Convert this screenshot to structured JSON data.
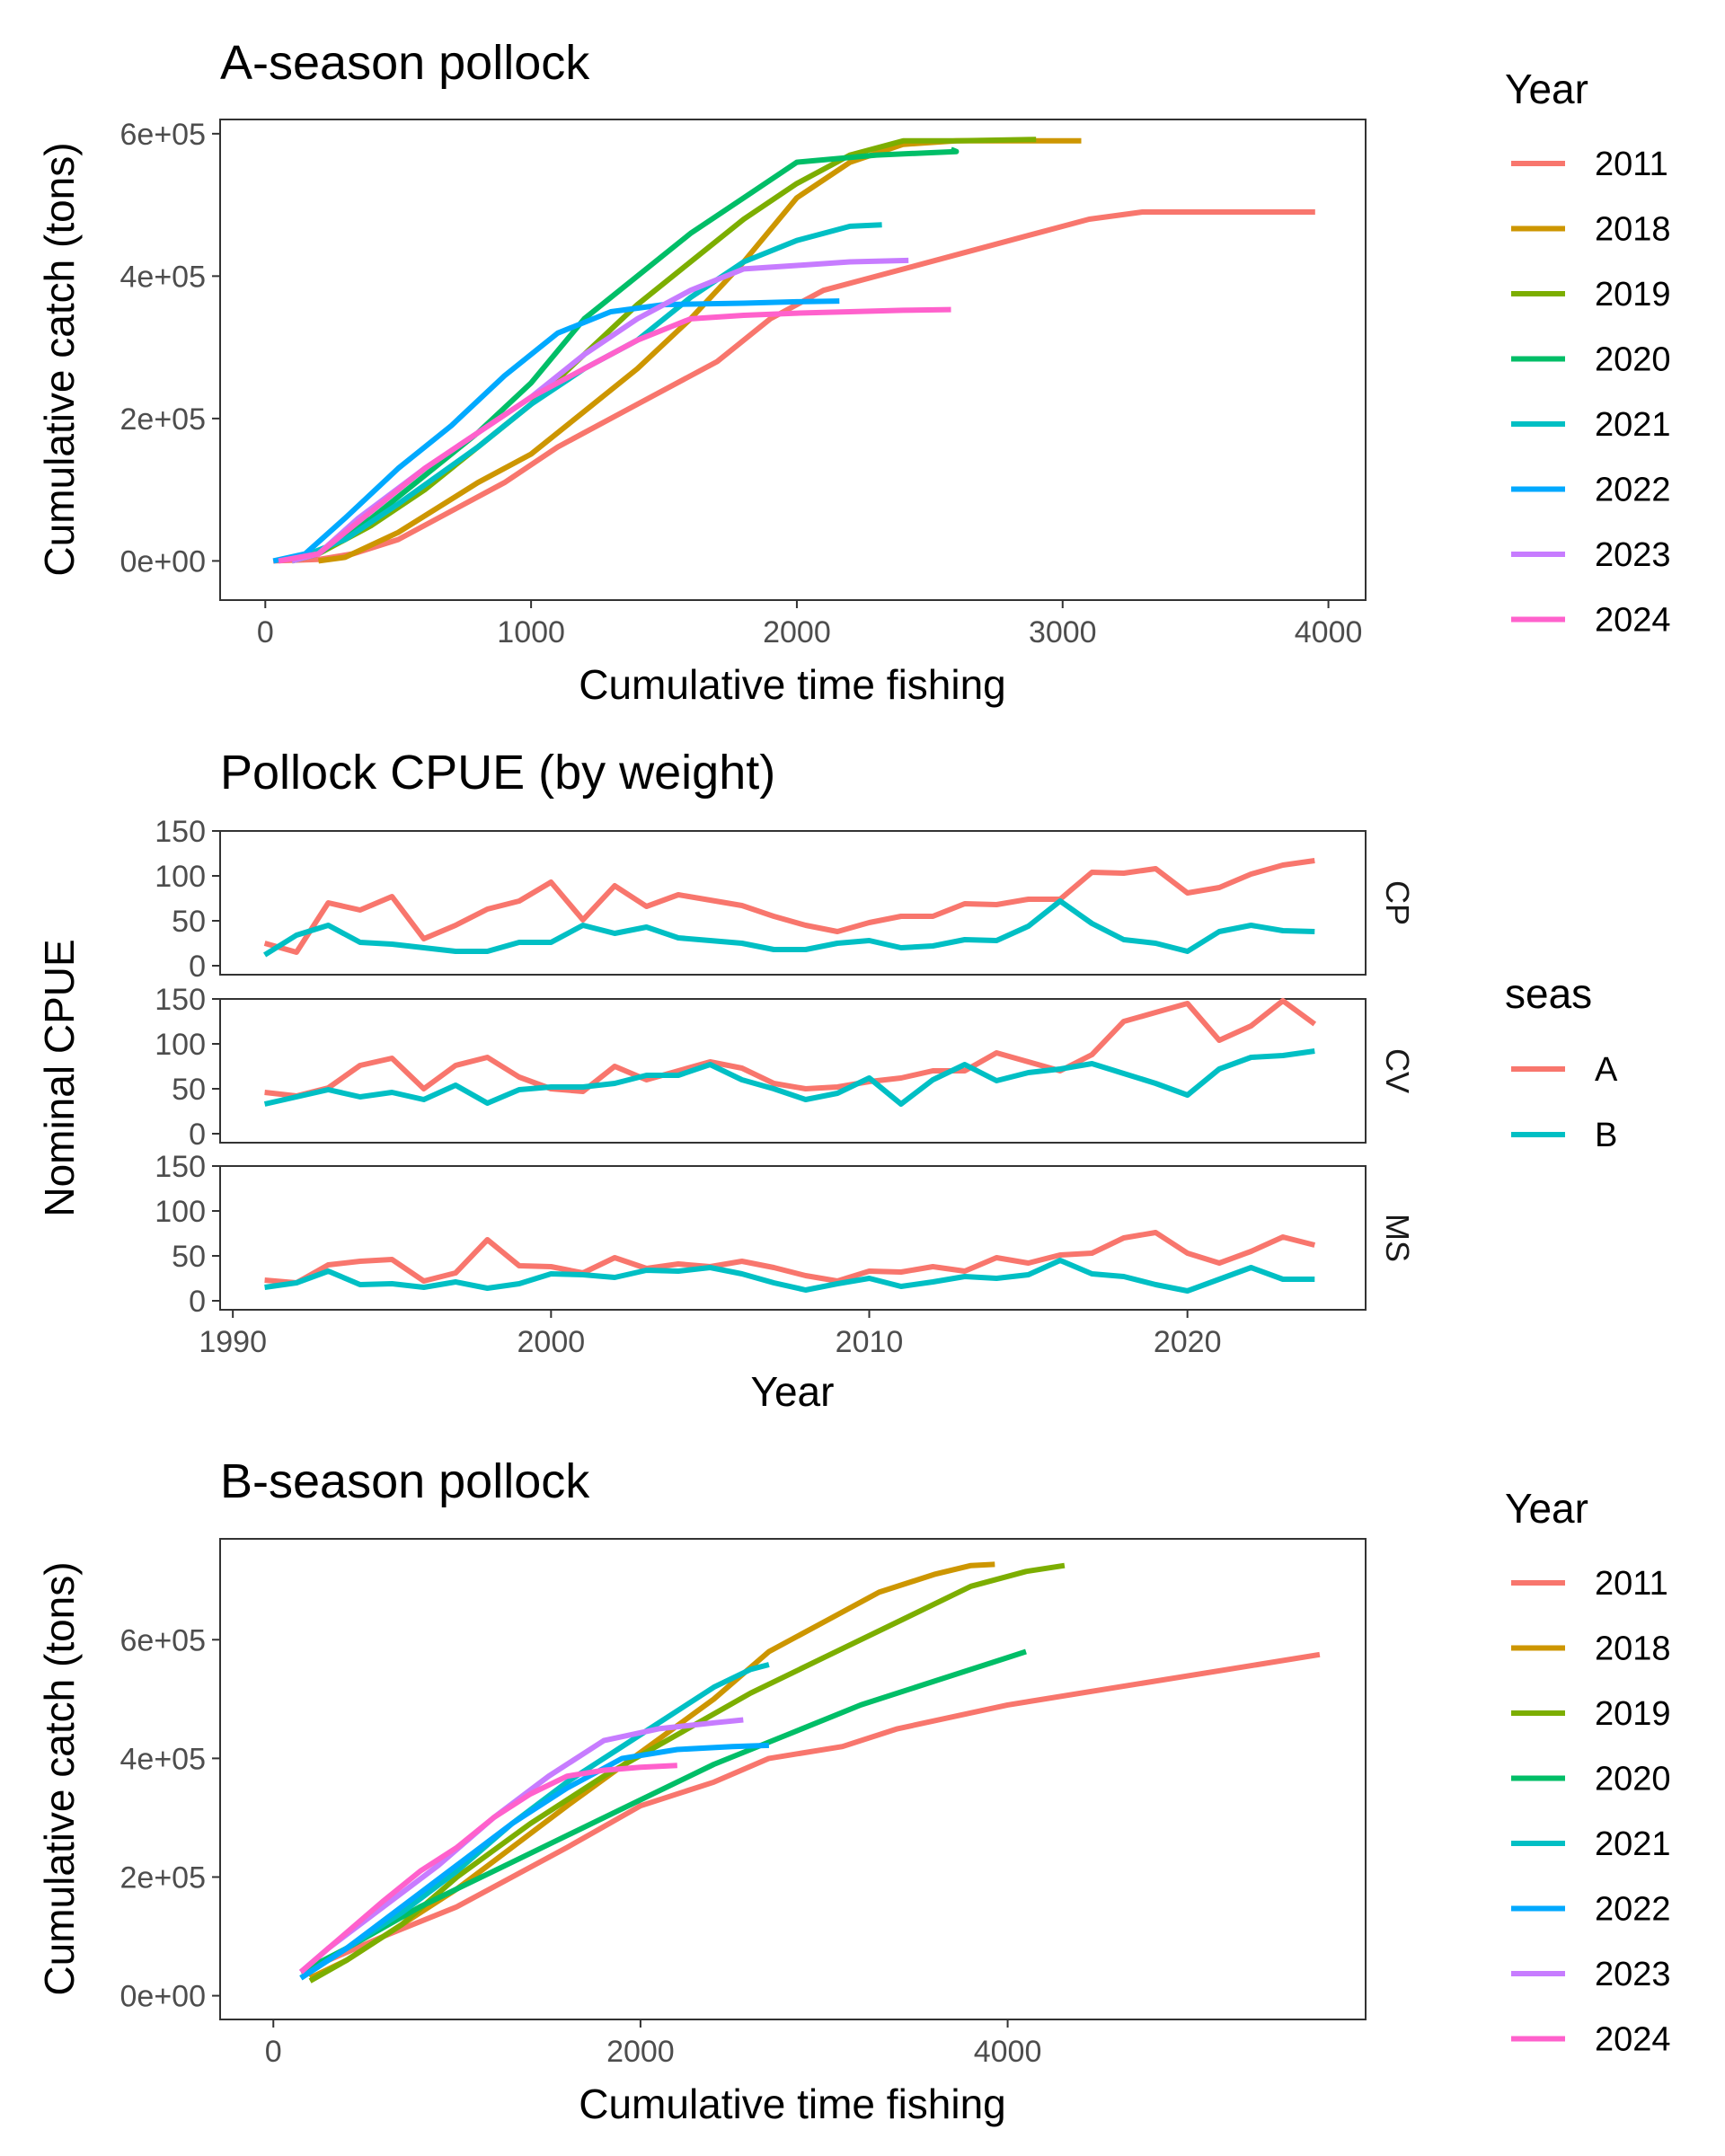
{
  "chart_data": [
    {
      "type": "line",
      "title": "A-season pollock",
      "xlabel": "Cumulative time fishing",
      "ylabel": "Cumulative catch (tons)",
      "xlim": [
        -170,
        4140
      ],
      "ylim": [
        -55000,
        620000
      ],
      "xticks": [
        0,
        1000,
        2000,
        3000,
        4000
      ],
      "xtick_labels": [
        "0",
        "1000",
        "2000",
        "3000",
        "4000"
      ],
      "yticks": [
        0,
        200000,
        400000,
        600000
      ],
      "ytick_labels": [
        "0e+00",
        "2e+05",
        "4e+05",
        "6e+05"
      ],
      "legend_title": "Year",
      "legend_position": "right",
      "series": [
        {
          "name": "2011",
          "color": "#F8766D",
          "x": [
            30,
            200,
            330,
            500,
            700,
            900,
            1100,
            1200,
            1400,
            1700,
            1900,
            2100,
            2300,
            2700,
            2900,
            3100,
            3300,
            3600,
            3950
          ],
          "y": [
            0,
            2000,
            10000,
            30000,
            70000,
            110000,
            160000,
            180000,
            220000,
            280000,
            340000,
            380000,
            400000,
            440000,
            460000,
            480000,
            490000,
            490000,
            490000
          ]
        },
        {
          "name": "2018",
          "color": "#CD9600",
          "x": [
            200,
            300,
            500,
            800,
            1000,
            1200,
            1400,
            1600,
            1800,
            2000,
            2200,
            2400,
            2600,
            3070
          ],
          "y": [
            0,
            5000,
            40000,
            110000,
            150000,
            210000,
            270000,
            340000,
            420000,
            510000,
            560000,
            585000,
            590000,
            590000
          ]
        },
        {
          "name": "2019",
          "color": "#7CAE00",
          "x": [
            100,
            200,
            400,
            600,
            800,
            1000,
            1200,
            1400,
            1600,
            1800,
            2000,
            2200,
            2400,
            2600,
            2900
          ],
          "y": [
            0,
            10000,
            50000,
            100000,
            160000,
            220000,
            290000,
            360000,
            420000,
            480000,
            530000,
            570000,
            590000,
            590000,
            592000
          ]
        },
        {
          "name": "2020",
          "color": "#00BE67",
          "x": [
            100,
            200,
            400,
            600,
            800,
            1000,
            1200,
            1400,
            1600,
            1800,
            2000,
            2300,
            2600,
            2580
          ],
          "y": [
            0,
            10000,
            60000,
            120000,
            180000,
            250000,
            340000,
            400000,
            460000,
            510000,
            560000,
            570000,
            575000,
            578000
          ]
        },
        {
          "name": "2021",
          "color": "#00BFC4",
          "x": [
            100,
            300,
            500,
            800,
            1000,
            1200,
            1400,
            1600,
            1800,
            2000,
            2200,
            2320
          ],
          "y": [
            0,
            30000,
            80000,
            160000,
            220000,
            270000,
            310000,
            370000,
            420000,
            450000,
            470000,
            472000
          ]
        },
        {
          "name": "2022",
          "color": "#00A9FF",
          "x": [
            30,
            150,
            300,
            500,
            700,
            900,
            1100,
            1300,
            1500,
            1800,
            2000,
            2160
          ],
          "y": [
            0,
            10000,
            60000,
            130000,
            190000,
            260000,
            320000,
            350000,
            360000,
            362000,
            364000,
            365000
          ]
        },
        {
          "name": "2023",
          "color": "#C77CFF",
          "x": [
            100,
            200,
            350,
            600,
            800,
            1000,
            1200,
            1400,
            1600,
            1800,
            2000,
            2200,
            2420
          ],
          "y": [
            0,
            10000,
            60000,
            130000,
            180000,
            230000,
            290000,
            340000,
            380000,
            410000,
            415000,
            420000,
            422000
          ]
        },
        {
          "name": "2024",
          "color": "#FF61CC",
          "x": [
            50,
            200,
            400,
            600,
            800,
            1000,
            1200,
            1400,
            1600,
            1800,
            2000,
            2200,
            2400,
            2580
          ],
          "y": [
            0,
            10000,
            70000,
            130000,
            180000,
            230000,
            270000,
            310000,
            340000,
            345000,
            348000,
            350000,
            352000,
            353000
          ]
        }
      ]
    },
    {
      "type": "line",
      "title": "Pollock CPUE (by weight)",
      "xlabel": "Year",
      "ylabel": "Nominal CPUE",
      "xlim": [
        1989.6,
        2025.6
      ],
      "xticks": [
        1990,
        2000,
        2010,
        2020
      ],
      "xtick_labels": [
        "1990",
        "2000",
        "2010",
        "2020"
      ],
      "ylim": [
        -10,
        150
      ],
      "yticks": [
        0,
        50,
        100,
        150
      ],
      "ytick_labels": [
        "0",
        "50",
        "100",
        "150"
      ],
      "legend_title": "seas",
      "legend_position": "right",
      "legend": [
        {
          "name": "A",
          "color": "#F8766D"
        },
        {
          "name": "B",
          "color": "#00BFC4"
        }
      ],
      "x": [
        1991,
        1992,
        1993,
        1994,
        1995,
        1996,
        1997,
        1998,
        1999,
        2000,
        2001,
        2002,
        2003,
        2004,
        2005,
        2006,
        2007,
        2008,
        2009,
        2010,
        2011,
        2012,
        2013,
        2014,
        2015,
        2016,
        2017,
        2018,
        2019,
        2020,
        2021,
        2022,
        2023,
        2024
      ],
      "panels": [
        {
          "label": "CP",
          "series": [
            {
              "name": "A",
              "color": "#F8766D",
              "values": [
                25,
                15,
                70,
                62,
                77,
                30,
                45,
                63,
                72,
                93,
                51,
                89,
                66,
                79,
                73,
                67,
                55,
                45,
                38,
                48,
                55,
                55,
                69,
                68,
                74,
                74,
                104,
                103,
                108,
                81,
                87,
                102,
                112,
                117
              ]
            },
            {
              "name": "B",
              "color": "#00BFC4",
              "values": [
                12,
                34,
                45,
                26,
                24,
                20,
                16,
                16,
                26,
                26,
                45,
                36,
                43,
                31,
                28,
                25,
                18,
                18,
                25,
                28,
                20,
                22,
                29,
                28,
                44,
                72,
                47,
                29,
                25,
                16,
                38,
                45,
                39,
                38
              ]
            }
          ]
        },
        {
          "label": "CV",
          "series": [
            {
              "name": "A",
              "color": "#F8766D",
              "values": [
                46,
                42,
                51,
                76,
                84,
                50,
                76,
                85,
                63,
                50,
                47,
                75,
                60,
                70,
                80,
                73,
                56,
                50,
                52,
                58,
                62,
                70,
                70,
                90,
                80,
                70,
                88,
                125,
                135,
                145,
                104,
                120,
                148,
                122
              ]
            },
            {
              "name": "B",
              "color": "#00BFC4",
              "values": [
                33,
                41,
                49,
                41,
                46,
                38,
                54,
                34,
                49,
                52,
                52,
                56,
                65,
                65,
                77,
                60,
                50,
                38,
                45,
                62,
                33,
                60,
                77,
                59,
                68,
                72,
                78,
                67,
                56,
                43,
                72,
                85,
                87,
                92
              ]
            }
          ]
        },
        {
          "label": "MS",
          "series": [
            {
              "name": "A",
              "color": "#F8766D",
              "values": [
                23,
                20,
                40,
                44,
                46,
                22,
                31,
                68,
                39,
                38,
                31,
                48,
                36,
                41,
                38,
                44,
                37,
                28,
                22,
                33,
                32,
                38,
                33,
                48,
                42,
                51,
                53,
                70,
                76,
                53,
                42,
                55,
                71,
                62
              ]
            },
            {
              "name": "B",
              "color": "#00BFC4",
              "values": [
                15,
                20,
                33,
                18,
                19,
                15,
                21,
                14,
                19,
                30,
                29,
                26,
                34,
                33,
                37,
                30,
                20,
                12,
                19,
                25,
                16,
                21,
                27,
                25,
                29,
                45,
                30,
                27,
                18,
                11,
                24,
                37,
                24,
                24
              ]
            }
          ]
        }
      ]
    },
    {
      "type": "line",
      "title": "B-season pollock",
      "xlabel": "Cumulative time fishing",
      "ylabel": "Cumulative catch (tons)",
      "xlim": [
        -290,
        5950
      ],
      "ylim": [
        -40000,
        770000
      ],
      "xticks": [
        0,
        2000,
        4000
      ],
      "xtick_labels": [
        "0",
        "2000",
        "4000"
      ],
      "yticks": [
        0,
        200000,
        400000,
        600000
      ],
      "ytick_labels": [
        "0e+00",
        "2e+05",
        "4e+05",
        "6e+05"
      ],
      "legend_title": "Year",
      "legend_position": "right",
      "series": [
        {
          "name": "2011",
          "color": "#F8766D",
          "x": [
            150,
            300,
            600,
            1000,
            1300,
            1600,
            2000,
            2400,
            2700,
            3100,
            3400,
            4000,
            4600,
            5200,
            5700
          ],
          "y": [
            40000,
            60000,
            100000,
            150000,
            200000,
            250000,
            320000,
            360000,
            400000,
            420000,
            450000,
            490000,
            520000,
            550000,
            575000
          ]
        },
        {
          "name": "2018",
          "color": "#CD9600",
          "x": [
            200,
            400,
            700,
            1000,
            1300,
            1600,
            2000,
            2400,
            2700,
            3000,
            3300,
            3600,
            3800,
            3930
          ],
          "y": [
            30000,
            60000,
            120000,
            180000,
            250000,
            320000,
            410000,
            500000,
            580000,
            630000,
            680000,
            710000,
            725000,
            727000
          ]
        },
        {
          "name": "2019",
          "color": "#7CAE00",
          "x": [
            200,
            400,
            700,
            1000,
            1400,
            1800,
            2200,
            2600,
            3000,
            3400,
            3800,
            4100,
            4310
          ],
          "y": [
            25000,
            60000,
            120000,
            200000,
            290000,
            370000,
            440000,
            510000,
            570000,
            630000,
            690000,
            715000,
            725000
          ]
        },
        {
          "name": "2020",
          "color": "#00BE67",
          "x": [
            150,
            400,
            800,
            1200,
            1600,
            2000,
            2400,
            2800,
            3200,
            3600,
            4000,
            4100
          ],
          "y": [
            40000,
            80000,
            150000,
            210000,
            270000,
            330000,
            390000,
            440000,
            490000,
            530000,
            570000,
            580000
          ]
        },
        {
          "name": "2021",
          "color": "#00BFC4",
          "x": [
            150,
            400,
            700,
            1000,
            1300,
            1600,
            1900,
            2200,
            2400,
            2600,
            2700
          ],
          "y": [
            30000,
            80000,
            140000,
            210000,
            290000,
            360000,
            420000,
            480000,
            520000,
            550000,
            558000
          ]
        },
        {
          "name": "2022",
          "color": "#00A9FF",
          "x": [
            150,
            400,
            700,
            1000,
            1300,
            1600,
            1900,
            2200,
            2500,
            2700
          ],
          "y": [
            30000,
            80000,
            150000,
            220000,
            290000,
            350000,
            400000,
            415000,
            420000,
            422000
          ]
        },
        {
          "name": "2023",
          "color": "#C77CFF",
          "x": [
            150,
            300,
            600,
            900,
            1200,
            1500,
            1800,
            2100,
            2400,
            2560
          ],
          "y": [
            40000,
            80000,
            150000,
            220000,
            300000,
            370000,
            430000,
            450000,
            460000,
            465000
          ]
        },
        {
          "name": "2024",
          "color": "#FF61CC",
          "x": [
            150,
            300,
            600,
            800,
            1000,
            1200,
            1400,
            1600,
            1800,
            2000,
            2200
          ],
          "y": [
            40000,
            80000,
            160000,
            210000,
            250000,
            300000,
            340000,
            370000,
            380000,
            385000,
            388000
          ]
        }
      ]
    }
  ]
}
